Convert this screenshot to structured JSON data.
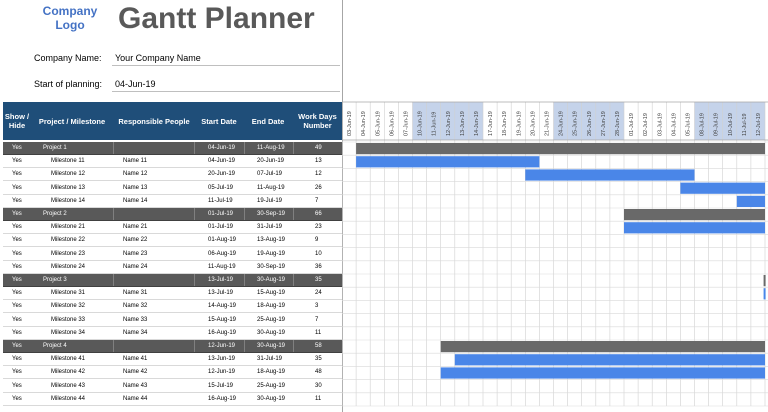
{
  "header": {
    "logo_line1": "Company",
    "logo_line2": "Logo",
    "title": "Gantt Planner",
    "company_label": "Company Name:",
    "company_value": "Your Company Name",
    "start_label": "Start of planning:",
    "start_value": "04-Jun-19"
  },
  "columns": {
    "show": "Show / Hide",
    "project": "Project / Milestone",
    "responsible": "Responsible People",
    "start": "Start Date",
    "end": "End Date",
    "workdays": "Work Days Number"
  },
  "timeline": {
    "dates": [
      "03-Jun-19",
      "04-Jun-19",
      "05-Jun-19",
      "06-Jun-19",
      "07-Jun-19",
      "10-Jun-19",
      "11-Jun-19",
      "12-Jun-19",
      "13-Jun-19",
      "14-Jun-19",
      "17-Jun-19",
      "18-Jun-19",
      "19-Jun-19",
      "20-Jun-19",
      "21-Jun-19",
      "24-Jun-19",
      "25-Jun-19",
      "26-Jun-19",
      "27-Jun-19",
      "28-Jun-19",
      "01-Jul-19",
      "02-Jul-19",
      "03-Jul-19",
      "04-Jul-19",
      "05-Jul-19",
      "08-Jul-19",
      "09-Jul-19",
      "10-Jul-19",
      "11-Jul-19",
      "12-Jul-19"
    ],
    "highlight_ranges": [
      [
        5,
        9
      ],
      [
        15,
        19
      ],
      [
        25,
        29
      ]
    ],
    "colors": {
      "project_bar": "#696969",
      "milestone_bar": "#4a86e8",
      "week_highlight": "#c5d3ea",
      "project_row": "#595959"
    }
  },
  "rows": [
    {
      "type": "project",
      "show": "Yes",
      "name": "Project 1",
      "people": "",
      "start": "04-Jun-19",
      "end": "11-Aug-19",
      "days": "49",
      "bar_start": 1,
      "bar_end": 30
    },
    {
      "type": "milestone",
      "show": "Yes",
      "name": "Milestone 11",
      "people": "Name 11",
      "start": "04-Jun-19",
      "end": "20-Jun-19",
      "days": "13",
      "bar_start": 1,
      "bar_end": 14
    },
    {
      "type": "milestone",
      "show": "Yes",
      "name": "Milestone 12",
      "people": "Name 12",
      "start": "20-Jun-19",
      "end": "07-Jul-19",
      "days": "12",
      "bar_start": 13,
      "bar_end": 25
    },
    {
      "type": "milestone",
      "show": "Yes",
      "name": "Milestone 13",
      "people": "Name 13",
      "start": "05-Jul-19",
      "end": "11-Aug-19",
      "days": "26",
      "bar_start": 24,
      "bar_end": 30
    },
    {
      "type": "milestone",
      "show": "Yes",
      "name": "Milestone 14",
      "people": "Name 14",
      "start": "11-Jul-19",
      "end": "19-Jul-19",
      "days": "7",
      "bar_start": 28,
      "bar_end": 30
    },
    {
      "type": "project",
      "show": "Yes",
      "name": "Project 2",
      "people": "",
      "start": "01-Jul-19",
      "end": "30-Sep-19",
      "days": "66",
      "bar_start": 20,
      "bar_end": 30
    },
    {
      "type": "milestone",
      "show": "Yes",
      "name": "Milestone 21",
      "people": "Name 21",
      "start": "01-Jul-19",
      "end": "31-Jul-19",
      "days": "23",
      "bar_start": 20,
      "bar_end": 30
    },
    {
      "type": "milestone",
      "show": "Yes",
      "name": "Milestone 22",
      "people": "Name 22",
      "start": "01-Aug-19",
      "end": "13-Aug-19",
      "days": "9",
      "bar_start": null,
      "bar_end": null
    },
    {
      "type": "milestone",
      "show": "Yes",
      "name": "Milestone 23",
      "people": "Name 23",
      "start": "06-Aug-19",
      "end": "19-Aug-19",
      "days": "10",
      "bar_start": null,
      "bar_end": null
    },
    {
      "type": "milestone",
      "show": "Yes",
      "name": "Milestone 24",
      "people": "Name 24",
      "start": "11-Aug-19",
      "end": "30-Sep-19",
      "days": "36",
      "bar_start": null,
      "bar_end": null
    },
    {
      "type": "project",
      "show": "Yes",
      "name": "Project 3",
      "people": "",
      "start": "13-Jul-19",
      "end": "30-Aug-19",
      "days": "35",
      "bar_start": 29.9,
      "bar_end": 30
    },
    {
      "type": "milestone",
      "show": "Yes",
      "name": "Milestone 31",
      "people": "Name 31",
      "start": "13-Jul-19",
      "end": "15-Aug-19",
      "days": "24",
      "bar_start": 29.9,
      "bar_end": 30
    },
    {
      "type": "milestone",
      "show": "Yes",
      "name": "Milestone 32",
      "people": "Name 32",
      "start": "14-Aug-19",
      "end": "18-Aug-19",
      "days": "3",
      "bar_start": null,
      "bar_end": null
    },
    {
      "type": "milestone",
      "show": "Yes",
      "name": "Milestone 33",
      "people": "Name 33",
      "start": "15-Aug-19",
      "end": "25-Aug-19",
      "days": "7",
      "bar_start": null,
      "bar_end": null
    },
    {
      "type": "milestone",
      "show": "Yes",
      "name": "Milestone 34",
      "people": "Name 34",
      "start": "16-Aug-19",
      "end": "30-Aug-19",
      "days": "11",
      "bar_start": null,
      "bar_end": null
    },
    {
      "type": "project",
      "show": "Yes",
      "name": "Project 4",
      "people": "",
      "start": "12-Jun-19",
      "end": "30-Aug-19",
      "days": "58",
      "bar_start": 7,
      "bar_end": 30
    },
    {
      "type": "milestone",
      "show": "Yes",
      "name": "Milestone 41",
      "people": "Name 41",
      "start": "13-Jun-19",
      "end": "31-Jul-19",
      "days": "35",
      "bar_start": 8,
      "bar_end": 30
    },
    {
      "type": "milestone",
      "show": "Yes",
      "name": "Milestone 42",
      "people": "Name 42",
      "start": "12-Jun-19",
      "end": "18-Aug-19",
      "days": "48",
      "bar_start": 7,
      "bar_end": 30
    },
    {
      "type": "milestone",
      "show": "Yes",
      "name": "Milestone 43",
      "people": "Name 43",
      "start": "15-Jul-19",
      "end": "25-Aug-19",
      "days": "30",
      "bar_start": null,
      "bar_end": null
    },
    {
      "type": "milestone",
      "show": "Yes",
      "name": "Milestone 44",
      "people": "Name 44",
      "start": "16-Aug-19",
      "end": "30-Aug-19",
      "days": "11",
      "bar_start": null,
      "bar_end": null
    }
  ]
}
